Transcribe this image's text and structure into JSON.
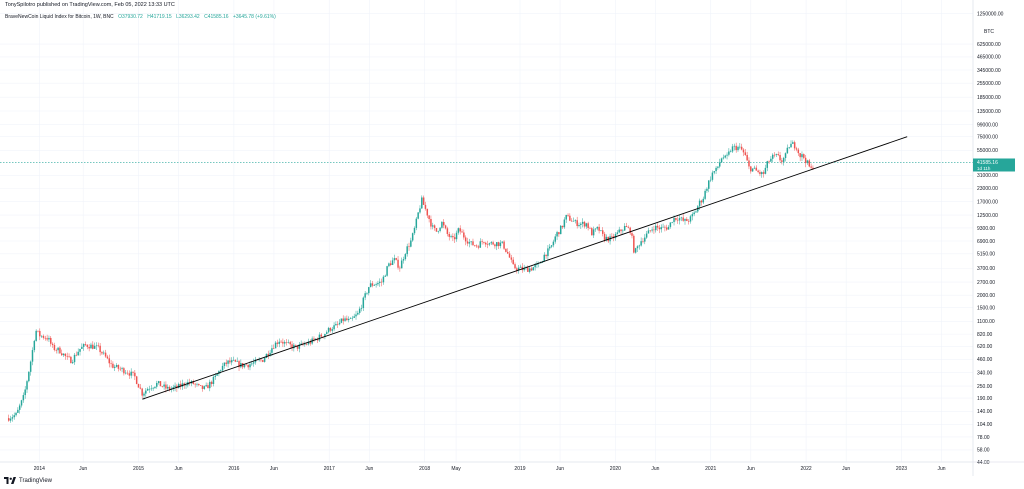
{
  "header": {
    "published": "TonySpilotro published on TradingView.com, Feb 05, 2022 13:33 UTC"
  },
  "legend": {
    "symbol": "BraveNewCoin Liquid Index for Bitcoin, 1W, BNC",
    "open": "O37930.72",
    "high": "H41719.15",
    "low": "L36293.42",
    "close": "C41585.16",
    "change": "+3645.78 (+9.61%)"
  },
  "price_axis": {
    "currency": "BTC",
    "current_price": "41585.16",
    "countdown": "1d 11h"
  },
  "footer": {
    "brand": "TradingView"
  },
  "colors": {
    "up": "#26a69a",
    "down": "#ef5350",
    "trendline": "#000000",
    "price_line": "#26a69a",
    "grid": "#f0f3fa"
  },
  "chart_data": {
    "type": "candlestick",
    "title": "BraveNewCoin Liquid Index for Bitcoin, 1W, BNC",
    "y_scale": "log",
    "ylim": [
      44,
      1300000
    ],
    "y_ticks": [
      "1250000.00",
      "625000.00",
      "465000.00",
      "345000.00",
      "255000.00",
      "185000.00",
      "135000.00",
      "99000.00",
      "75000.00",
      "55000.00",
      "31000.00",
      "23000.00",
      "17000.00",
      "12500.00",
      "9300.00",
      "6900.00",
      "5150.00",
      "3700.00",
      "2700.00",
      "2000.00",
      "1500.00",
      "1100.00",
      "820.00",
      "620.00",
      "460.00",
      "340.00",
      "250.00",
      "190.00",
      "140.00",
      "104.00",
      "78.00",
      "58.00",
      "44.00"
    ],
    "x_ticks": [
      "2014",
      "Jun",
      "2015",
      "Jun",
      "2016",
      "Jun",
      "2017",
      "Jun",
      "2018",
      "May",
      "2019",
      "Jun",
      "2020",
      "Jun",
      "2021",
      "Jun",
      "2022",
      "Jun",
      "2023",
      "Jun"
    ],
    "x_tick_dates": [
      2013.96,
      2014.42,
      2015.0,
      2015.42,
      2016.0,
      2016.42,
      2017.0,
      2017.42,
      2018.0,
      2018.33,
      2019.0,
      2019.42,
      2020.0,
      2020.42,
      2021.0,
      2021.42,
      2022.0,
      2022.42,
      2023.0,
      2023.42
    ],
    "xlim": [
      2013.6,
      2023.75
    ],
    "last_close": 41585.16,
    "price_path": [
      [
        2013.62,
        120
      ],
      [
        2013.72,
        130
      ],
      [
        2013.8,
        200
      ],
      [
        2013.88,
        500
      ],
      [
        2013.92,
        900
      ],
      [
        2013.96,
        800
      ],
      [
        2014.05,
        750
      ],
      [
        2014.1,
        600
      ],
      [
        2014.18,
        560
      ],
      [
        2014.25,
        470
      ],
      [
        2014.3,
        450
      ],
      [
        2014.38,
        580
      ],
      [
        2014.45,
        640
      ],
      [
        2014.52,
        620
      ],
      [
        2014.58,
        590
      ],
      [
        2014.65,
        490
      ],
      [
        2014.72,
        400
      ],
      [
        2014.8,
        370
      ],
      [
        2014.88,
        350
      ],
      [
        2014.96,
        310
      ],
      [
        2015.04,
        210
      ],
      [
        2015.1,
        240
      ],
      [
        2015.2,
        265
      ],
      [
        2015.3,
        235
      ],
      [
        2015.4,
        240
      ],
      [
        2015.5,
        270
      ],
      [
        2015.58,
        265
      ],
      [
        2015.64,
        240
      ],
      [
        2015.7,
        235
      ],
      [
        2015.8,
        300
      ],
      [
        2015.87,
        380
      ],
      [
        2015.93,
        430
      ],
      [
        2016.0,
        430
      ],
      [
        2016.08,
        400
      ],
      [
        2016.18,
        415
      ],
      [
        2016.3,
        455
      ],
      [
        2016.42,
        640
      ],
      [
        2016.48,
        720
      ],
      [
        2016.55,
        650
      ],
      [
        2016.65,
        605
      ],
      [
        2016.75,
        650
      ],
      [
        2016.85,
        720
      ],
      [
        2016.95,
        830
      ],
      [
        2017.02,
        950
      ],
      [
        2017.08,
        990
      ],
      [
        2017.15,
        1150
      ],
      [
        2017.22,
        1100
      ],
      [
        2017.3,
        1300
      ],
      [
        2017.36,
        1800
      ],
      [
        2017.42,
        2500
      ],
      [
        2017.48,
        2600
      ],
      [
        2017.55,
        2700
      ],
      [
        2017.62,
        4000
      ],
      [
        2017.68,
        4500
      ],
      [
        2017.74,
        3800
      ],
      [
        2017.8,
        5500
      ],
      [
        2017.86,
        7000
      ],
      [
        2017.9,
        9500
      ],
      [
        2017.94,
        14000
      ],
      [
        2017.97,
        17500
      ],
      [
        2018.02,
        13500
      ],
      [
        2018.08,
        9500
      ],
      [
        2018.12,
        8500
      ],
      [
        2018.18,
        10500
      ],
      [
        2018.24,
        8000
      ],
      [
        2018.3,
        7000
      ],
      [
        2018.36,
        9000
      ],
      [
        2018.42,
        7500
      ],
      [
        2018.48,
        6500
      ],
      [
        2018.55,
        6200
      ],
      [
        2018.62,
        7000
      ],
      [
        2018.68,
        6500
      ],
      [
        2018.75,
        6600
      ],
      [
        2018.82,
        6400
      ],
      [
        2018.88,
        5000
      ],
      [
        2018.93,
        3800
      ],
      [
        2018.97,
        3700
      ],
      [
        2019.04,
        3600
      ],
      [
        2019.12,
        3700
      ],
      [
        2019.2,
        4000
      ],
      [
        2019.26,
        5100
      ],
      [
        2019.32,
        5800
      ],
      [
        2019.38,
        8000
      ],
      [
        2019.44,
        9500
      ],
      [
        2019.48,
        12000
      ],
      [
        2019.52,
        11500
      ],
      [
        2019.58,
        10500
      ],
      [
        2019.64,
        10200
      ],
      [
        2019.7,
        10300
      ],
      [
        2019.75,
        8200
      ],
      [
        2019.82,
        9200
      ],
      [
        2019.88,
        7400
      ],
      [
        2019.96,
        7200
      ],
      [
        2020.04,
        8500
      ],
      [
        2020.1,
        9500
      ],
      [
        2020.16,
        8800
      ],
      [
        2020.2,
        5200
      ],
      [
        2020.26,
        6800
      ],
      [
        2020.32,
        7800
      ],
      [
        2020.4,
        9500
      ],
      [
        2020.48,
        9200
      ],
      [
        2020.56,
        9500
      ],
      [
        2020.6,
        11500
      ],
      [
        2020.66,
        11800
      ],
      [
        2020.72,
        10800
      ],
      [
        2020.78,
        11300
      ],
      [
        2020.84,
        13500
      ],
      [
        2020.88,
        16500
      ],
      [
        2020.92,
        18500
      ],
      [
        2020.96,
        24000
      ],
      [
        2021.02,
        33000
      ],
      [
        2021.06,
        35000
      ],
      [
        2021.12,
        48000
      ],
      [
        2021.16,
        45000
      ],
      [
        2021.22,
        58000
      ],
      [
        2021.28,
        59000
      ],
      [
        2021.32,
        56000
      ],
      [
        2021.36,
        49000
      ],
      [
        2021.4,
        37000
      ],
      [
        2021.45,
        35500
      ],
      [
        2021.5,
        33000
      ],
      [
        2021.55,
        31500
      ],
      [
        2021.6,
        42000
      ],
      [
        2021.65,
        47000
      ],
      [
        2021.7,
        48000
      ],
      [
        2021.74,
        43000
      ],
      [
        2021.78,
        47000
      ],
      [
        2021.82,
        61000
      ],
      [
        2021.86,
        63000
      ],
      [
        2021.9,
        60000
      ],
      [
        2021.93,
        49000
      ],
      [
        2021.97,
        48000
      ],
      [
        2022.01,
        41500
      ],
      [
        2022.05,
        35000
      ],
      [
        2022.09,
        41585
      ]
    ],
    "trendline": {
      "start": [
        2015.04,
        185
      ],
      "end": [
        2023.06,
        75000
      ]
    }
  }
}
